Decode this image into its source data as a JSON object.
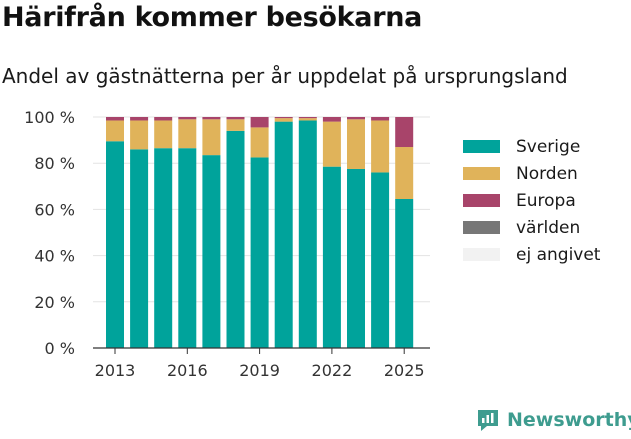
{
  "header": {
    "title": "Härifrån kommer besökarna",
    "subtitle": "Andel av gästnätterna per år uppdelat på ursprungsland"
  },
  "brand": {
    "name": "Newsworthy",
    "icon": "newsworthy-logo-icon",
    "color": "#3e9c8f"
  },
  "chart_data": {
    "type": "bar",
    "stacked": true,
    "categories": [
      "2013",
      "2014",
      "2015",
      "2016",
      "2017",
      "2018",
      "2019",
      "2020",
      "2021",
      "2022",
      "2023",
      "2024",
      "2025"
    ],
    "x_tick_labels": [
      "2013",
      "2016",
      "2019",
      "2022",
      "2025"
    ],
    "y_ticks": [
      "0 %",
      "20 %",
      "40 %",
      "60 %",
      "80 %",
      "100 %"
    ],
    "ylim": [
      0,
      100
    ],
    "grid": true,
    "legend_position": "right",
    "series": [
      {
        "name": "Sverige",
        "color": "#00a39b",
        "values": [
          89.5,
          86,
          86.5,
          86.5,
          83.5,
          94,
          82.5,
          98,
          98.5,
          78.5,
          77.5,
          76,
          64.5
        ]
      },
      {
        "name": "Norden",
        "color": "#e0b35a",
        "values": [
          9,
          12.5,
          12,
          12.5,
          15.5,
          5,
          13,
          1.5,
          1,
          19.5,
          21.5,
          22.5,
          22.5
        ]
      },
      {
        "name": "Europa",
        "color": "#a8446a",
        "values": [
          1.5,
          1.5,
          1.5,
          1,
          1,
          1,
          4.5,
          0.5,
          0.5,
          2,
          1,
          1.5,
          13
        ]
      },
      {
        "name": "världen",
        "color": "#777777",
        "values": [
          0,
          0,
          0,
          0,
          0,
          0,
          0,
          0,
          0,
          0,
          0,
          0,
          0
        ]
      },
      {
        "name": "ej angivet",
        "color": "#f2f2f2",
        "values": [
          0,
          0,
          0,
          0,
          0,
          0,
          0,
          0,
          0,
          0,
          0,
          0,
          0
        ]
      }
    ]
  }
}
